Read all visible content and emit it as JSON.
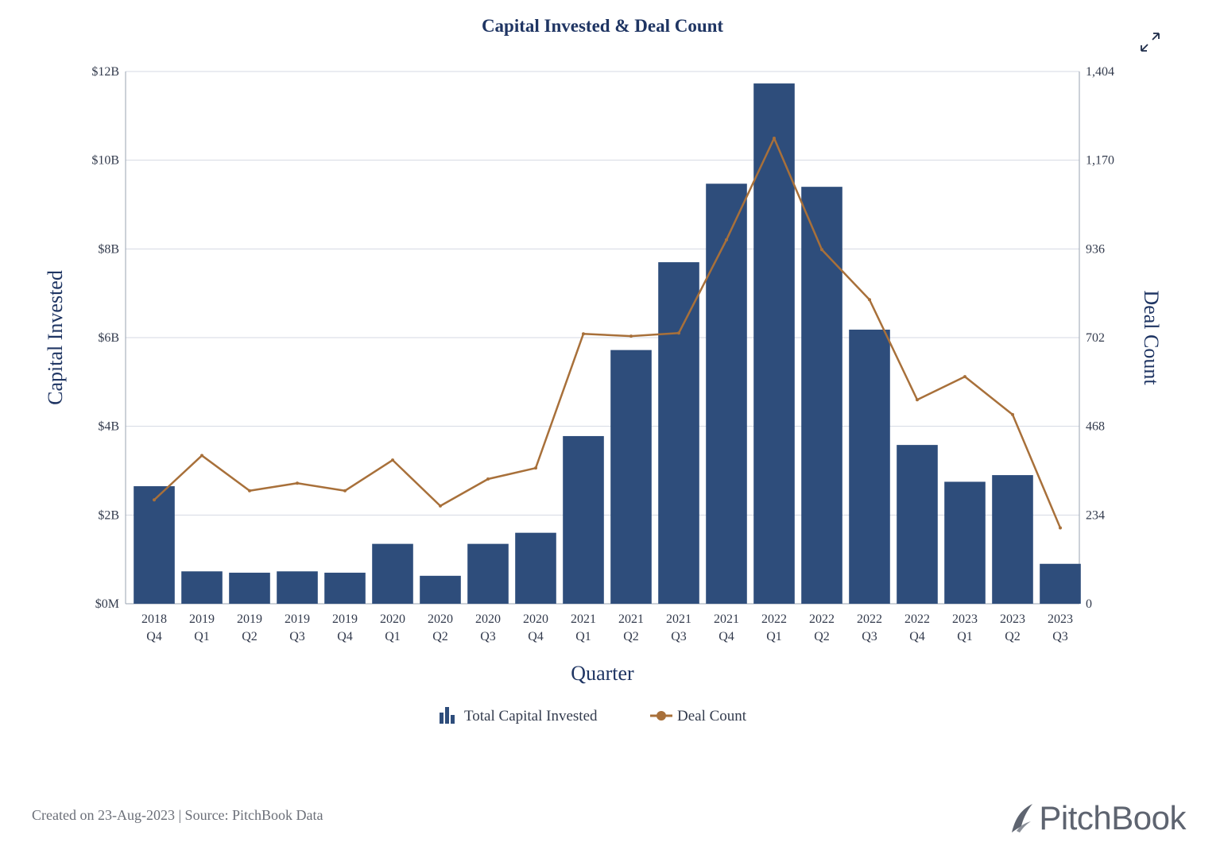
{
  "chart_data": {
    "type": "bar",
    "title": "Capital Invested & Deal Count",
    "xlabel": "Quarter",
    "ylabel": "Capital Invested",
    "y2label": "Deal Count",
    "ylim": [
      0,
      12
    ],
    "y2lim": [
      0,
      1404
    ],
    "yticks": [
      "$0M",
      "$2B",
      "$4B",
      "$6B",
      "$8B",
      "$10B",
      "$12B"
    ],
    "y2ticks": [
      "0",
      "234",
      "468",
      "702",
      "936",
      "1,170",
      "1,404"
    ],
    "categories": [
      [
        "2018",
        "Q4"
      ],
      [
        "2019",
        "Q1"
      ],
      [
        "2019",
        "Q2"
      ],
      [
        "2019",
        "Q3"
      ],
      [
        "2019",
        "Q4"
      ],
      [
        "2020",
        "Q1"
      ],
      [
        "2020",
        "Q2"
      ],
      [
        "2020",
        "Q3"
      ],
      [
        "2020",
        "Q4"
      ],
      [
        "2021",
        "Q1"
      ],
      [
        "2021",
        "Q2"
      ],
      [
        "2021",
        "Q3"
      ],
      [
        "2021",
        "Q4"
      ],
      [
        "2022",
        "Q1"
      ],
      [
        "2022",
        "Q2"
      ],
      [
        "2022",
        "Q3"
      ],
      [
        "2022",
        "Q4"
      ],
      [
        "2023",
        "Q1"
      ],
      [
        "2023",
        "Q2"
      ],
      [
        "2023",
        "Q3"
      ]
    ],
    "series": [
      {
        "name": "Total Capital Invested",
        "type": "bar",
        "axis": "left",
        "color": "#2e4d7b",
        "values": [
          2.65,
          0.73,
          0.7,
          0.73,
          0.7,
          1.35,
          0.63,
          1.35,
          1.6,
          3.78,
          5.72,
          7.7,
          9.47,
          11.73,
          9.4,
          6.18,
          3.58,
          2.75,
          2.9,
          0.9
        ]
      },
      {
        "name": "Deal Count",
        "type": "line",
        "axis": "right",
        "color": "#a8703a",
        "values": [
          274,
          391,
          298,
          318,
          298,
          379,
          258,
          329,
          358,
          712,
          706,
          714,
          960,
          1228,
          934,
          802,
          538,
          599,
          499,
          200
        ]
      }
    ],
    "legend_position": "bottom-center",
    "grid": true
  },
  "footer": {
    "note": "Created on 23-Aug-2023 | Source: PitchBook Data",
    "brand": "PitchBook"
  },
  "icons": {
    "expand": "expand-icon",
    "legend_bar": "bar-chart-icon",
    "legend_line": "line-marker-icon",
    "brand_mark": "pitchbook-logo-icon"
  }
}
